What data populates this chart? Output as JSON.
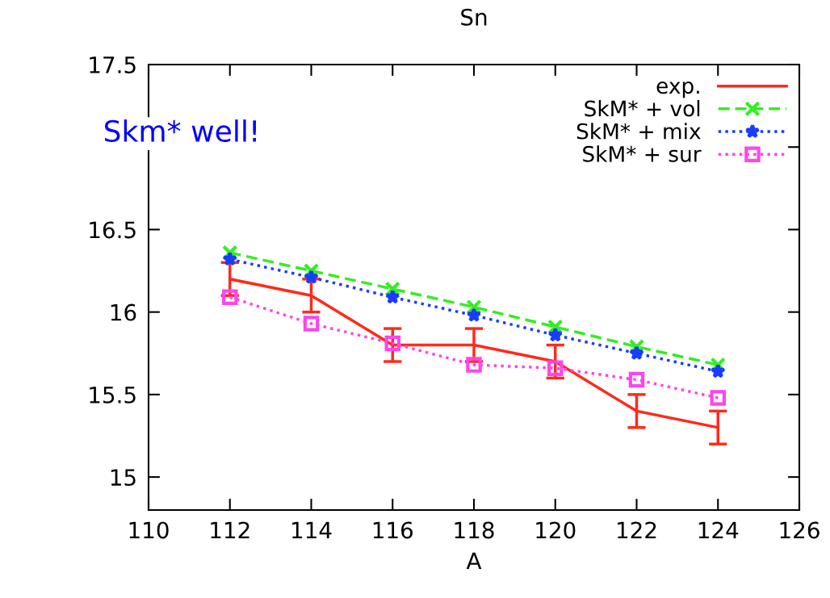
{
  "chart_data": {
    "type": "line",
    "title": "Sn",
    "xlabel": "A",
    "x": [
      112,
      114,
      116,
      118,
      120,
      122,
      124
    ],
    "series": [
      {
        "name": "exp.",
        "color": "#ff2a1a",
        "values": [
          16.2,
          16.1,
          15.8,
          15.8,
          15.7,
          15.4,
          15.3
        ],
        "errors": [
          0.1,
          0.1,
          0.1,
          0.1,
          0.1,
          0.1,
          0.1
        ],
        "line_style": "solid",
        "marker": "none"
      },
      {
        "name": "SkM* + vol",
        "color": "#33ee22",
        "values": [
          16.36,
          16.25,
          16.14,
          16.03,
          15.91,
          15.79,
          15.68
        ],
        "line_style": "dashed",
        "marker": "cross"
      },
      {
        "name": "SkM* + mix",
        "color": "#1a3cff",
        "values": [
          16.32,
          16.21,
          16.09,
          15.98,
          15.86,
          15.75,
          15.64
        ],
        "line_style": "dotted",
        "marker": "star"
      },
      {
        "name": "SkM* + sur",
        "color": "#ff44ee",
        "values": [
          16.09,
          15.93,
          15.81,
          15.68,
          15.66,
          15.59,
          15.48
        ],
        "line_style": "dotted",
        "marker": "square"
      }
    ],
    "xlim": [
      110,
      126
    ],
    "xticks": [
      110,
      112,
      114,
      116,
      118,
      120,
      122,
      124,
      126
    ],
    "ylim": [
      14.8,
      17.5
    ],
    "yticks": [
      15,
      15.5,
      16,
      16.5,
      {
        "value": 17,
        "label": null
      },
      17.5
    ],
    "annotations": [
      "Skm* well!"
    ],
    "legend": "top right",
    "grid": false
  }
}
